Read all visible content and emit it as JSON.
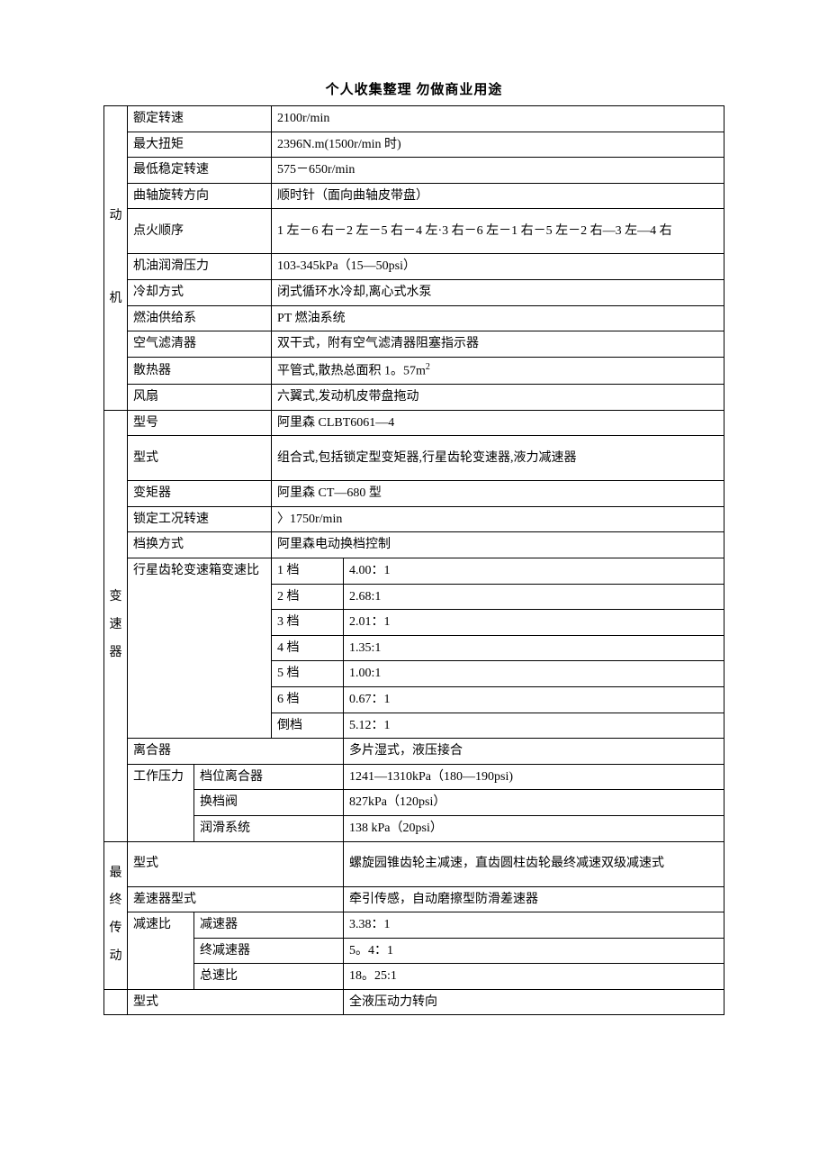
{
  "page_header": "个人收集整理 勿做商业用途",
  "sections": {
    "engine": {
      "header": "动\n\n\n机",
      "rated_speed_label": "额定转速",
      "rated_speed_value": "2100r/min",
      "max_torque_label": "最大扭矩",
      "max_torque_value": "2396N.m(1500r/min 时)",
      "min_stable_label": "最低稳定转速",
      "min_stable_value": "575－650r/min",
      "crank_dir_label": "曲轴旋转方向",
      "crank_dir_value": "顺时针（面向曲轴皮带盘）",
      "firing_order_label": "点火顺序",
      "firing_order_value": "1 左－6 右－2 左－5 右－4 左·3 右－6 左－1 右－5 左－2 右—3 左—4 右",
      "oil_pressure_label": "机油润滑压力",
      "oil_pressure_value": "103-345kPa（15—50psi）",
      "cooling_label": "冷却方式",
      "cooling_value": "闭式循环水冷却,离心式水泵",
      "fuel_label": "燃油供给系",
      "fuel_value": "PT 燃油系统",
      "air_filter_label": "空气滤清器",
      "air_filter_value": "双干式，附有空气滤清器阻塞指示器",
      "radiator_label": "散热器",
      "radiator_value": "平管式,散热总面积 1。57m",
      "radiator_sup": "2",
      "fan_label": "风扇",
      "fan_value": "六翼式,发动机皮带盘拖动"
    },
    "transmission": {
      "header": "变\n速\n器",
      "model_label": "型号",
      "model_value": "阿里森 CLBT6061—4",
      "type_label": "型式",
      "type_value": "组合式,包括锁定型变矩器,行星齿轮变速器,液力减速器",
      "converter_label": "变矩器",
      "converter_value": "阿里森 CT—680 型",
      "lock_speed_label": "锁定工况转速",
      "lock_speed_value": "〉1750r/min",
      "shift_mode_label": "档换方式",
      "shift_mode_value": "阿里森电动换档控制",
      "gear_ratio_label": "行星齿轮变速箱变速比",
      "gears": [
        {
          "gear": "1 档",
          "ratio": "4.00：1"
        },
        {
          "gear": "2 档",
          "ratio": "2.68:1"
        },
        {
          "gear": "3 档",
          "ratio": "2.01：1"
        },
        {
          "gear": "4 档",
          "ratio": "1.35:1"
        },
        {
          "gear": "5 档",
          "ratio": "1.00:1"
        },
        {
          "gear": "6 档",
          "ratio": "0.67：1"
        },
        {
          "gear": "倒档",
          "ratio": "5.12：1"
        }
      ],
      "clutch_label": "离合器",
      "clutch_value": "多片湿式，液压接合",
      "work_pressure_label": "工作压力",
      "gear_clutch_label": "档位离合器",
      "gear_clutch_value": "1241—1310kPa（180—190psi)",
      "shift_valve_label": "换档阀",
      "shift_valve_value": "827kPa（120psi）",
      "lube_label": "润滑系统",
      "lube_value": "138 kPa（20psi）"
    },
    "final_drive": {
      "header": "最终传动",
      "type_label": "型式",
      "type_value": "螺旋园锥齿轮主减速，直齿圆柱齿轮最终减速双级减速式",
      "diff_label": "差速器型式",
      "diff_value": "牵引传感，自动磨擦型防滑差速器",
      "ratio_label": "减速比",
      "reducer_label": "减速器",
      "reducer_value": "3.38：1",
      "final_reducer_label": "终减速器",
      "final_reducer_value": "5。4：1",
      "total_ratio_label": "总速比",
      "total_ratio_value": "18。25:1"
    },
    "steering": {
      "type_label": "型式",
      "type_value": "全液压动力转向"
    }
  }
}
